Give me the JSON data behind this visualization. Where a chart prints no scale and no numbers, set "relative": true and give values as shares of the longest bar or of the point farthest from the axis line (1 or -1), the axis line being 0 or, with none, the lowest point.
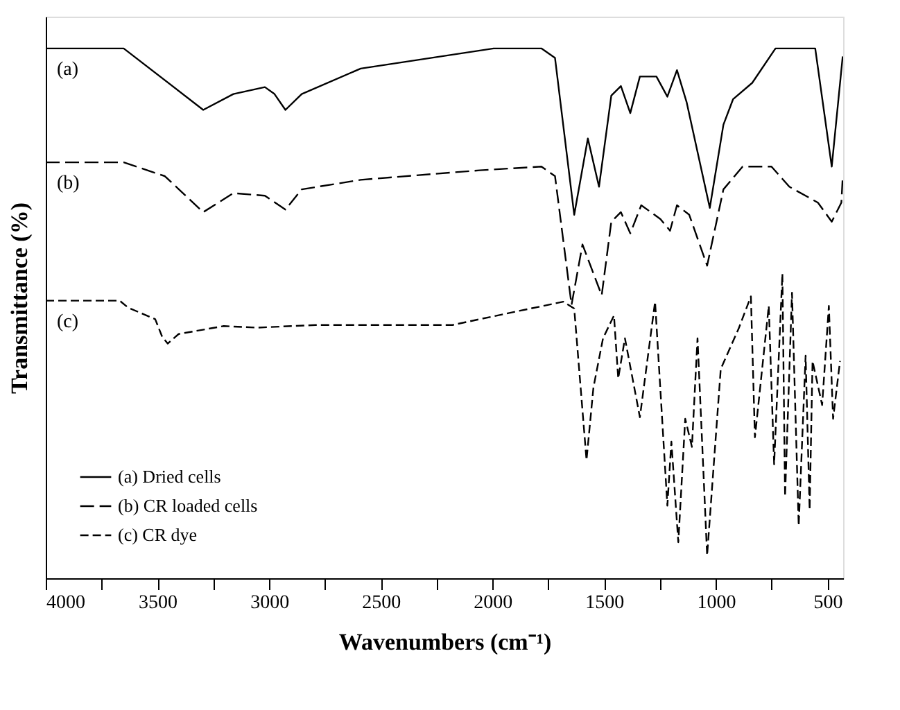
{
  "chart_data": {
    "type": "line",
    "relative": true,
    "xlabel": "Wavenumbers (cm⁻¹)",
    "ylabel": "Transmittance (%)",
    "xlim": [
      4000,
      430
    ],
    "xticks": [
      4000,
      {
        "value": 3750,
        "label": null
      },
      3500,
      {
        "value": 3250,
        "label": null
      },
      3000,
      {
        "value": 2750,
        "label": null
      },
      2500,
      {
        "value": 2250,
        "label": null
      },
      2000,
      {
        "value": 1750,
        "label": null
      },
      1500,
      {
        "value": 1250,
        "label": null
      },
      1000,
      {
        "value": 750,
        "label": null
      },
      500
    ],
    "grid": false,
    "legend": "bottom left",
    "tick_labels": "x",
    "annotations": [
      "(a)",
      "(b)",
      "(c)"
    ],
    "series": [
      {
        "name": "(a) Dried cells",
        "color": "#000000",
        "line_style": "solid",
        "x": [
          4000,
          3651,
          3295,
          3160,
          3019,
          2976,
          2927,
          2854,
          2590,
          1995,
          1781,
          1720,
          1634,
          1573,
          1523,
          1468,
          1425,
          1383,
          1340,
          1266,
          1217,
          1174,
          1131,
          1027,
          966,
          923,
          837,
          733,
          555,
          481,
          432
        ],
        "values": [
          1.0,
          1.0,
          0.884,
          0.914,
          0.927,
          0.914,
          0.884,
          0.914,
          0.962,
          1.0,
          1.0,
          0.982,
          0.686,
          0.83,
          0.739,
          0.911,
          0.929,
          0.878,
          0.947,
          0.947,
          0.909,
          0.959,
          0.899,
          0.699,
          0.856,
          0.904,
          0.935,
          1.0,
          1.0,
          0.777,
          0.985
        ]
      },
      {
        "name": "(b) CR loaded cells",
        "color": "#000000",
        "line_style": "dashed",
        "x": [
          4000,
          3651,
          3467,
          3295,
          3160,
          3019,
          2927,
          2854,
          2590,
          2057,
          1781,
          1720,
          1646,
          1597,
          1511,
          1468,
          1425,
          1383,
          1334,
          1248,
          1205,
          1174,
          1119,
          1039,
          966,
          880,
          751,
          671,
          543,
          481,
          438,
          432
        ],
        "values": [
          0.785,
          0.785,
          0.759,
          0.691,
          0.727,
          0.722,
          0.696,
          0.734,
          0.752,
          0.77,
          0.777,
          0.759,
          0.516,
          0.63,
          0.534,
          0.673,
          0.691,
          0.651,
          0.704,
          0.678,
          0.656,
          0.704,
          0.686,
          0.59,
          0.734,
          0.777,
          0.777,
          0.739,
          0.709,
          0.673,
          0.709,
          0.757
        ]
      },
      {
        "name": "(c) CR dye",
        "color": "#000000",
        "line_style": "dashed",
        "x": [
          4000,
          3669,
          3632,
          3510,
          3479,
          3454,
          3405,
          3203,
          3056,
          2792,
          2179,
          2057,
          1683,
          1634,
          1579,
          1548,
          1505,
          1456,
          1437,
          1407,
          1340,
          1272,
          1217,
          1199,
          1168,
          1137,
          1107,
          1082,
          1039,
          978,
          898,
          843,
          825,
          763,
          739,
          702,
          690,
          659,
          629,
          598,
          580,
          567,
          524,
          494,
          475,
          444
        ],
        "values": [
          0.524,
          0.524,
          0.511,
          0.489,
          0.456,
          0.443,
          0.461,
          0.476,
          0.473,
          0.478,
          0.478,
          0.489,
          0.522,
          0.509,
          0.223,
          0.36,
          0.453,
          0.496,
          0.377,
          0.453,
          0.304,
          0.522,
          0.137,
          0.258,
          0.068,
          0.301,
          0.248,
          0.453,
          0.043,
          0.395,
          0.471,
          0.532,
          0.266,
          0.514,
          0.215,
          0.575,
          0.154,
          0.539,
          0.099,
          0.42,
          0.129,
          0.41,
          0.327,
          0.514,
          0.301,
          0.41
        ]
      }
    ]
  }
}
